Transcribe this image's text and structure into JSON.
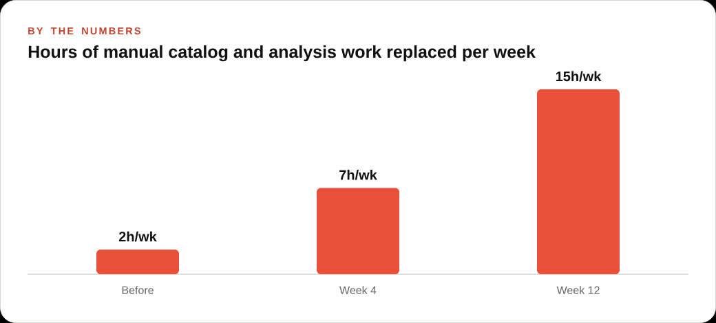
{
  "chart_data": {
    "type": "bar",
    "subtitle": "BY THE NUMBERS",
    "title": "Hours of manual catalog and analysis work replaced per week",
    "categories": [
      "Before",
      "Week 4",
      "Week 12"
    ],
    "values": [
      2,
      7,
      15
    ],
    "value_labels": [
      "2h/wk",
      "7h/wk",
      "15h/wk"
    ],
    "color": "#e8503a",
    "ylim": [
      0,
      15
    ],
    "tick_labels": "x"
  }
}
